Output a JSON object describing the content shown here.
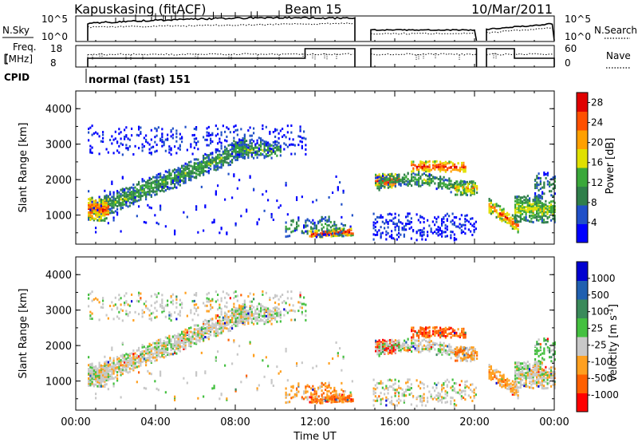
{
  "header": {
    "station": "Kapuskasing (fitACF)",
    "beam": "Beam 15",
    "date": "10/Mar/2011"
  },
  "top_panels": {
    "nsky_label": "N.Sky",
    "nsky_ticks": [
      "10^5",
      "10^0"
    ],
    "nsearch_label": "N.Search",
    "nsearch_ticks": [
      "10^5",
      "10^0"
    ],
    "freq_label_1": "Freq.",
    "freq_label_2": "[MHz]",
    "freq_ticks": [
      "18",
      "8"
    ],
    "nave_label": "Nave",
    "nave_ticks": [
      "60",
      "0"
    ],
    "cpid_label": "CPID",
    "cpid_text": "normal (fast) 151"
  },
  "chart_data": [
    {
      "type": "heatmap",
      "name": "power",
      "ylabel": "Slant Range [km]",
      "ylim": [
        180,
        4500
      ],
      "yticks": [
        "1000",
        "2000",
        "3000",
        "4000"
      ],
      "xlim": [
        0,
        24
      ],
      "colorbar": {
        "label": "Power [dB]",
        "ticks": [
          "28",
          "24",
          "20",
          "16",
          "12",
          "8",
          "4"
        ],
        "range": [
          0,
          30
        ],
        "colors": [
          "#0000ff",
          "#2050c8",
          "#2f7f4a",
          "#3aa83a",
          "#e0e000",
          "#ffa000",
          "#ff5000",
          "#e00000"
        ]
      }
    },
    {
      "type": "heatmap",
      "name": "velocity",
      "ylabel": "Slant Range [km]",
      "ylim": [
        180,
        4500
      ],
      "yticks": [
        "1000",
        "2000",
        "3000",
        "4000"
      ],
      "xlim": [
        0,
        24
      ],
      "xticks": [
        "00:00",
        "04:00",
        "08:00",
        "12:00",
        "16:00",
        "20:00",
        "00:00"
      ],
      "xlabel": "Time UT",
      "colorbar": {
        "label_main": "Velocity [m s",
        "label_sup": "-1",
        "label_close": "]",
        "ticks": [
          "1000",
          "500",
          "100",
          "25",
          "-25",
          "-100",
          "-500",
          "-1000"
        ],
        "colors": [
          "#0000d0",
          "#2060b0",
          "#3a8a5a",
          "#44c040",
          "#c8c8c8",
          "#ffa020",
          "#ff6000",
          "#ff0000"
        ]
      }
    }
  ]
}
